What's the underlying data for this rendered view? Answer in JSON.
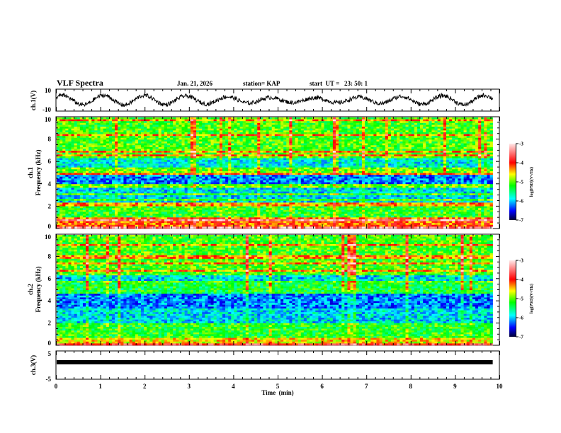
{
  "header": {
    "title": "VLF Spectra",
    "date": "Jan. 21, 2026",
    "station": "station= KAP",
    "start_ut": "start  UT =   23: 50: 1"
  },
  "chart_data": [
    {
      "id": "ch1-waveform",
      "type": "line",
      "ylabel": "ch.1(V)",
      "ylim": [
        -10,
        10
      ],
      "yticks": [
        "10",
        "-10"
      ],
      "xlim": [
        0,
        10
      ],
      "description": "noisy voltage waveform, roughly -6 to 6 V, oscillating"
    },
    {
      "id": "ch1-spectrogram",
      "type": "heatmap",
      "ylabel": "ch.1\nFrequency (kHz)",
      "ylabel_lines": [
        "ch.1",
        "Frequency (kHz)"
      ],
      "ylim": [
        0,
        10
      ],
      "yticks": [
        "0",
        "2",
        "4",
        "6",
        "8",
        "10"
      ],
      "xlim": [
        0,
        9.85
      ],
      "colorbar": {
        "label": "log(PSD)(V²/Hz)",
        "range": [
          -7,
          -3
        ],
        "ticks": [
          "-3",
          "-4",
          "-5",
          "-6",
          "-7"
        ]
      },
      "bands_khz": [
        {
          "from": 0,
          "to": 1.0,
          "level": -4.2
        },
        {
          "from": 1.0,
          "to": 2.3,
          "level": -5.2
        },
        {
          "from": 2.3,
          "to": 3.6,
          "level": -5.9
        },
        {
          "from": 3.6,
          "to": 4.0,
          "level": -5.0
        },
        {
          "from": 4.0,
          "to": 4.9,
          "level": -6.2
        },
        {
          "from": 4.9,
          "to": 5.5,
          "level": -5.0
        },
        {
          "from": 5.5,
          "to": 6.4,
          "level": -5.8
        },
        {
          "from": 6.4,
          "to": 10,
          "level": -5.1
        }
      ]
    },
    {
      "id": "ch2-spectrogram",
      "type": "heatmap",
      "ylabel_lines": [
        "ch.2",
        "Frequency (kHz)"
      ],
      "ylim": [
        0,
        10
      ],
      "yticks": [
        "0",
        "2",
        "4",
        "6",
        "8",
        "10"
      ],
      "xlim": [
        0,
        9.85
      ],
      "colorbar": {
        "label": "log(PSD)(V²/Hz)",
        "range": [
          -7,
          -3
        ],
        "ticks": [
          "-3",
          "-4",
          "-5",
          "-6",
          "-7"
        ]
      },
      "bands_khz": [
        {
          "from": 0,
          "to": 0.7,
          "level": -4.6
        },
        {
          "from": 0.7,
          "to": 2.0,
          "level": -5.2
        },
        {
          "from": 2.0,
          "to": 3.3,
          "level": -5.9
        },
        {
          "from": 3.3,
          "to": 4.6,
          "level": -6.2
        },
        {
          "from": 4.6,
          "to": 5.6,
          "level": -5.3
        },
        {
          "from": 5.6,
          "to": 6.4,
          "level": -5.9
        },
        {
          "from": 6.4,
          "to": 10,
          "level": -5.1
        }
      ]
    },
    {
      "id": "ch3-signal",
      "type": "line",
      "ylabel": "ch.3(V)",
      "ylim": [
        -5,
        5
      ],
      "yticks": [
        "5",
        "-5"
      ],
      "xlim": [
        0,
        10
      ],
      "value_approx": 1,
      "description": "flat thick line near +1 V from 0 to 9.85 min"
    }
  ],
  "x_axis": {
    "label": "Time  (min)",
    "ticks": [
      "0",
      "1",
      "2",
      "3",
      "4",
      "5",
      "6",
      "7",
      "8",
      "9",
      "10"
    ],
    "range": [
      0,
      10
    ]
  },
  "colors": {
    "colormap": [
      "#000033",
      "#0000ff",
      "#00ffff",
      "#00ff00",
      "#ffff00",
      "#ff0000",
      "#ffe0e0"
    ]
  }
}
